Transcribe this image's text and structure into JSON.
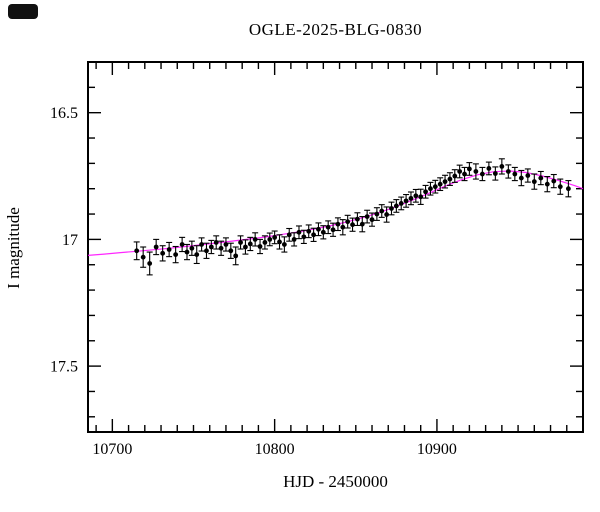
{
  "title": "OGLE-2025-BLG-0830",
  "chart_data": {
    "type": "scatter",
    "title": "OGLE-2025-BLG-0830",
    "xlabel": "HJD - 2450000",
    "ylabel": "I magnitude",
    "xlim": [
      10685,
      10990
    ],
    "ylim_bottom": 17.76,
    "ylim_top": 16.3,
    "y_inverted": true,
    "grid": false,
    "legend": "none",
    "x_ticks_major": [
      10700,
      10800,
      10900
    ],
    "x_ticks_major_labels": [
      "10700",
      "10800",
      "10900"
    ],
    "x_tick_minor_step": 10,
    "y_ticks_major": [
      16.5,
      17.0,
      17.5
    ],
    "y_ticks_major_labels": [
      "16.5",
      "17",
      "17.5"
    ],
    "y_tick_minor_step": 0.1,
    "point_color": "#000000",
    "model_color": "#ff00ff",
    "frame_color": "#000000",
    "model": [
      [
        10685,
        17.063
      ],
      [
        10695,
        17.058
      ],
      [
        10705,
        17.052
      ],
      [
        10715,
        17.047
      ],
      [
        10725,
        17.041
      ],
      [
        10735,
        17.035
      ],
      [
        10745,
        17.028
      ],
      [
        10755,
        17.021
      ],
      [
        10765,
        17.014
      ],
      [
        10775,
        17.006
      ],
      [
        10785,
        16.998
      ],
      [
        10795,
        16.99
      ],
      [
        10805,
        16.98
      ],
      [
        10815,
        16.97
      ],
      [
        10825,
        16.958
      ],
      [
        10835,
        16.945
      ],
      [
        10845,
        16.93
      ],
      [
        10855,
        16.913
      ],
      [
        10865,
        16.893
      ],
      [
        10875,
        16.87
      ],
      [
        10885,
        16.845
      ],
      [
        10895,
        16.818
      ],
      [
        10905,
        16.79
      ],
      [
        10915,
        16.765
      ],
      [
        10925,
        16.745
      ],
      [
        10935,
        16.733
      ],
      [
        10945,
        16.73
      ],
      [
        10955,
        16.736
      ],
      [
        10965,
        16.75
      ],
      [
        10975,
        16.768
      ],
      [
        10985,
        16.788
      ],
      [
        10990,
        16.8
      ]
    ],
    "points": [
      [
        10715,
        17.045,
        0.035
      ],
      [
        10719,
        17.07,
        0.04
      ],
      [
        10723,
        17.095,
        0.045
      ],
      [
        10727,
        17.03,
        0.03
      ],
      [
        10731,
        17.055,
        0.03
      ],
      [
        10735,
        17.04,
        0.028
      ],
      [
        10739,
        17.06,
        0.032
      ],
      [
        10743,
        17.02,
        0.028
      ],
      [
        10746,
        17.05,
        0.03
      ],
      [
        10749,
        17.035,
        0.028
      ],
      [
        10752,
        17.06,
        0.035
      ],
      [
        10755,
        17.02,
        0.026
      ],
      [
        10758,
        17.045,
        0.03
      ],
      [
        10761,
        17.03,
        0.026
      ],
      [
        10764,
        17.012,
        0.026
      ],
      [
        10767,
        17.035,
        0.028
      ],
      [
        10770,
        17.02,
        0.026
      ],
      [
        10773,
        17.045,
        0.03
      ],
      [
        10776,
        17.065,
        0.035
      ],
      [
        10779,
        17.012,
        0.026
      ],
      [
        10782,
        17.03,
        0.028
      ],
      [
        10785,
        17.018,
        0.026
      ],
      [
        10788,
        17.0,
        0.026
      ],
      [
        10791,
        17.028,
        0.028
      ],
      [
        10794,
        17.012,
        0.026
      ],
      [
        10797,
        17.0,
        0.025
      ],
      [
        10800,
        16.992,
        0.025
      ],
      [
        10803,
        17.01,
        0.028
      ],
      [
        10806,
        17.02,
        0.03
      ],
      [
        10809,
        16.982,
        0.025
      ],
      [
        10812,
        17.0,
        0.026
      ],
      [
        10815,
        16.972,
        0.025
      ],
      [
        10818,
        16.99,
        0.026
      ],
      [
        10821,
        16.968,
        0.025
      ],
      [
        10824,
        16.982,
        0.026
      ],
      [
        10827,
        16.96,
        0.025
      ],
      [
        10830,
        16.972,
        0.026
      ],
      [
        10833,
        16.952,
        0.025
      ],
      [
        10836,
        16.962,
        0.026
      ],
      [
        10839,
        16.94,
        0.025
      ],
      [
        10842,
        16.952,
        0.03
      ],
      [
        10845,
        16.93,
        0.025
      ],
      [
        10848,
        16.942,
        0.026
      ],
      [
        10851,
        16.92,
        0.025
      ],
      [
        10854,
        16.94,
        0.03
      ],
      [
        10857,
        16.91,
        0.025
      ],
      [
        10860,
        16.922,
        0.026
      ],
      [
        10863,
        16.9,
        0.025
      ],
      [
        10866,
        16.888,
        0.025
      ],
      [
        10869,
        16.902,
        0.03
      ],
      [
        10872,
        16.878,
        0.025
      ],
      [
        10875,
        16.868,
        0.025
      ],
      [
        10878,
        16.858,
        0.025
      ],
      [
        10881,
        16.848,
        0.025
      ],
      [
        10884,
        16.838,
        0.025
      ],
      [
        10887,
        16.828,
        0.025
      ],
      [
        10890,
        16.832,
        0.03
      ],
      [
        10893,
        16.812,
        0.025
      ],
      [
        10896,
        16.8,
        0.025
      ],
      [
        10899,
        16.792,
        0.025
      ],
      [
        10902,
        16.782,
        0.025
      ],
      [
        10905,
        16.772,
        0.025
      ],
      [
        10908,
        16.762,
        0.025
      ],
      [
        10911,
        16.75,
        0.025
      ],
      [
        10914,
        16.732,
        0.025
      ],
      [
        10917,
        16.742,
        0.026
      ],
      [
        10920,
        16.722,
        0.025
      ],
      [
        10924,
        16.732,
        0.03
      ],
      [
        10928,
        16.742,
        0.026
      ],
      [
        10932,
        16.72,
        0.025
      ],
      [
        10936,
        16.74,
        0.026
      ],
      [
        10940,
        16.712,
        0.03
      ],
      [
        10944,
        16.732,
        0.026
      ],
      [
        10948,
        16.742,
        0.026
      ],
      [
        10952,
        16.758,
        0.03
      ],
      [
        10956,
        16.748,
        0.026
      ],
      [
        10960,
        16.772,
        0.03
      ],
      [
        10964,
        16.758,
        0.026
      ],
      [
        10968,
        16.782,
        0.03
      ],
      [
        10972,
        16.77,
        0.026
      ],
      [
        10976,
        16.792,
        0.03
      ],
      [
        10981,
        16.8,
        0.032
      ]
    ]
  }
}
